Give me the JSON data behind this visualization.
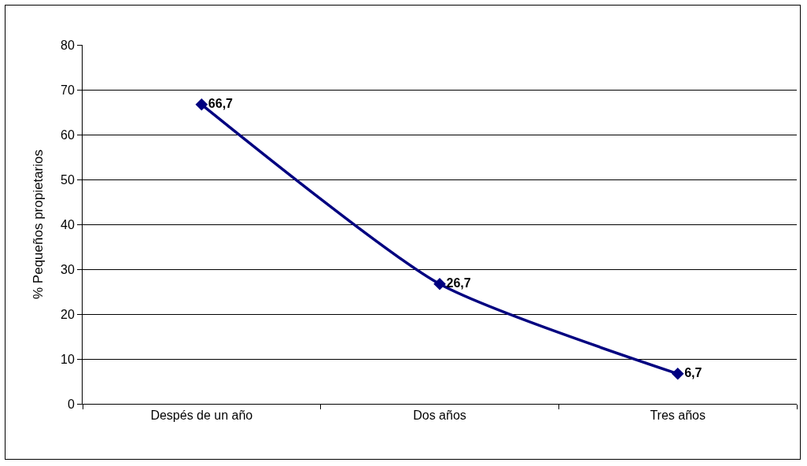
{
  "chart_data": {
    "type": "line",
    "ylabel": "% Pequeños propietarios",
    "categories": [
      "Despés de un año",
      "Dos años",
      "Tres años"
    ],
    "series": [
      {
        "color": "#000080",
        "values": [
          66.7,
          26.7,
          6.7
        ],
        "value_labels": [
          "66,7",
          "26,7",
          "6,7"
        ]
      }
    ],
    "ylim": [
      0,
      80
    ],
    "yticks": [
      0,
      10,
      20,
      30,
      40,
      50,
      60,
      70,
      80
    ],
    "grid": "y",
    "marker": "diamond",
    "line_style": "solid"
  }
}
